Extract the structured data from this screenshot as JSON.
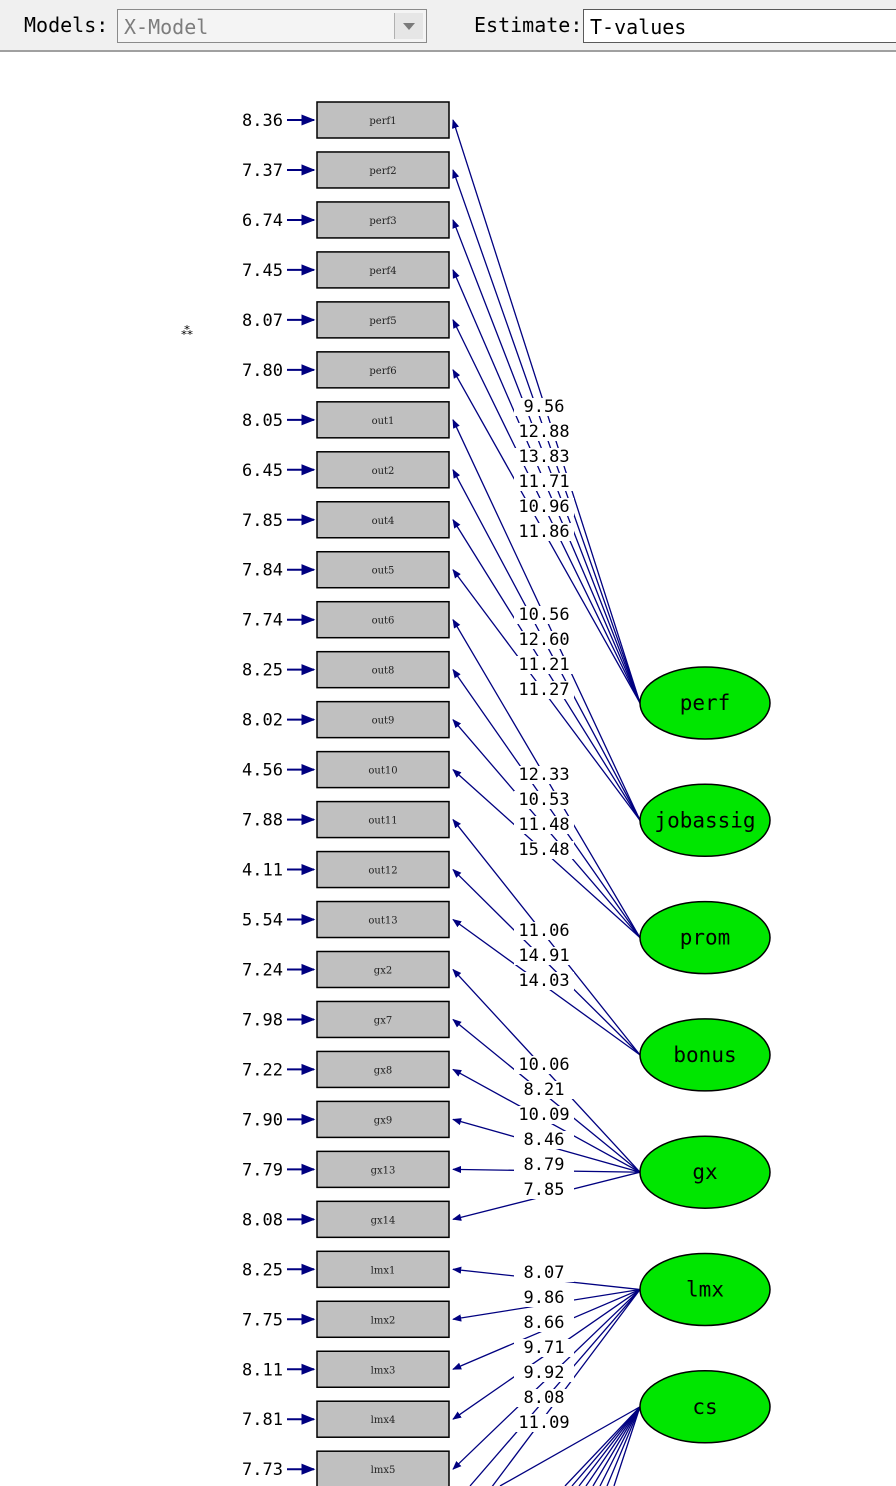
{
  "toolbar": {
    "models_label": "Models:",
    "models_value": "X-Model",
    "estimate_label": "Estimate:",
    "estimate_value": "T-values"
  },
  "diagram": {
    "colors": {
      "latent_fill": "#00e600",
      "indicator_fill": "#c0c0c0",
      "path_stroke": "#000080"
    },
    "indicators": [
      {
        "name": "perf1",
        "error": "8.36"
      },
      {
        "name": "perf2",
        "error": "7.37"
      },
      {
        "name": "perf3",
        "error": "6.74"
      },
      {
        "name": "perf4",
        "error": "7.45"
      },
      {
        "name": "perf5",
        "error": "8.07"
      },
      {
        "name": "perf6",
        "error": "7.80"
      },
      {
        "name": "out1",
        "error": "8.05"
      },
      {
        "name": "out2",
        "error": "6.45"
      },
      {
        "name": "out4",
        "error": "7.85"
      },
      {
        "name": "out5",
        "error": "7.84"
      },
      {
        "name": "out6",
        "error": "7.74"
      },
      {
        "name": "out8",
        "error": "8.25"
      },
      {
        "name": "out9",
        "error": "8.02"
      },
      {
        "name": "out10",
        "error": "4.56"
      },
      {
        "name": "out11",
        "error": "7.88"
      },
      {
        "name": "out12",
        "error": "4.11"
      },
      {
        "name": "out13",
        "error": "5.54"
      },
      {
        "name": "gx2",
        "error": "7.24"
      },
      {
        "name": "gx7",
        "error": "7.98"
      },
      {
        "name": "gx8",
        "error": "7.22"
      },
      {
        "name": "gx9",
        "error": "7.90"
      },
      {
        "name": "gx13",
        "error": "7.79"
      },
      {
        "name": "gx14",
        "error": "8.08"
      },
      {
        "name": "lmx1",
        "error": "8.25"
      },
      {
        "name": "lmx2",
        "error": "7.75"
      },
      {
        "name": "lmx3",
        "error": "8.11"
      },
      {
        "name": "lmx4",
        "error": "7.81"
      },
      {
        "name": "lmx5",
        "error": "7.73"
      }
    ],
    "latents": [
      {
        "name": "perf",
        "loadings": [
          {
            "indicator": 0,
            "value": "9.56"
          },
          {
            "indicator": 1,
            "value": "12.88"
          },
          {
            "indicator": 2,
            "value": "13.83"
          },
          {
            "indicator": 3,
            "value": "11.71"
          },
          {
            "indicator": 4,
            "value": "10.96"
          },
          {
            "indicator": 5,
            "value": "11.86"
          }
        ]
      },
      {
        "name": "jobassig",
        "loadings": [
          {
            "indicator": 6,
            "value": "10.56"
          },
          {
            "indicator": 7,
            "value": "12.60"
          },
          {
            "indicator": 8,
            "value": "11.21"
          },
          {
            "indicator": 9,
            "value": "11.27"
          }
        ]
      },
      {
        "name": "prom",
        "loadings": [
          {
            "indicator": 10,
            "value": "12.33"
          },
          {
            "indicator": 11,
            "value": "10.53"
          },
          {
            "indicator": 12,
            "value": "11.48"
          },
          {
            "indicator": 13,
            "value": "15.48"
          }
        ]
      },
      {
        "name": "bonus",
        "loadings": [
          {
            "indicator": 14,
            "value": "11.06"
          },
          {
            "indicator": 15,
            "value": "14.91"
          },
          {
            "indicator": 16,
            "value": "14.03"
          }
        ]
      },
      {
        "name": "gx",
        "loadings": [
          {
            "indicator": 17,
            "value": "10.06"
          },
          {
            "indicator": 18,
            "value": "8.21"
          },
          {
            "indicator": 19,
            "value": "10.09"
          },
          {
            "indicator": 20,
            "value": "8.46"
          },
          {
            "indicator": 21,
            "value": "8.79"
          },
          {
            "indicator": 22,
            "value": "7.85"
          }
        ]
      },
      {
        "name": "lmx",
        "loadings": [
          {
            "indicator": 23,
            "value": "8.07"
          },
          {
            "indicator": 24,
            "value": "9.86"
          },
          {
            "indicator": 25,
            "value": "8.66"
          },
          {
            "indicator": 26,
            "value": "9.71"
          },
          {
            "indicator": 27,
            "value": "9.92"
          },
          {
            "indicator": null,
            "value": "8.08"
          },
          {
            "indicator": null,
            "value": "11.09"
          }
        ]
      },
      {
        "name": "cs",
        "loadings": []
      }
    ]
  }
}
